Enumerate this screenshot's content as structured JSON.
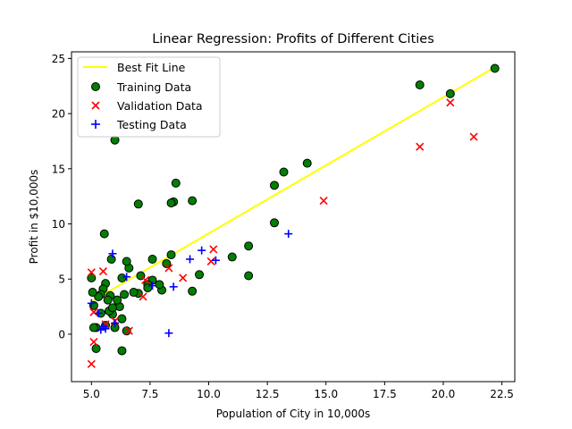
{
  "chart_data": {
    "type": "scatter",
    "title": "Linear Regression: Profits of Different Cities",
    "xlabel": "Population of City in 10,000s",
    "ylabel": "Profit in $10,000s",
    "xlim": [
      4.15,
      23.05
    ],
    "ylim": [
      -4.3,
      25.6
    ],
    "xticks": [
      5.0,
      7.5,
      10.0,
      12.5,
      15.0,
      17.5,
      20.0,
      22.5
    ],
    "xtick_labels": [
      "5.0",
      "7.5",
      "10.0",
      "12.5",
      "15.0",
      "17.5",
      "20.0",
      "22.5"
    ],
    "yticks": [
      0,
      5,
      10,
      15,
      20,
      25
    ],
    "ytick_labels": [
      "0",
      "5",
      "10",
      "15",
      "20",
      "25"
    ],
    "grid": false,
    "legend_position": "top-left",
    "line": {
      "name": "Best Fit Line",
      "color": "#ffff00",
      "x": [
        5.03,
        22.2
      ],
      "y": [
        3.0,
        24.2
      ]
    },
    "series": [
      {
        "name": "Training Data",
        "marker": "circle",
        "color": "#008000",
        "edge_color": "#000000",
        "x": [
          22.2,
          20.3,
          19.0,
          14.2,
          13.2,
          12.8,
          12.8,
          11.7,
          11.7,
          11.0,
          9.6,
          9.3,
          9.3,
          8.6,
          8.5,
          8.4,
          8.4,
          8.2,
          8.0,
          7.9,
          7.6,
          7.6,
          7.4,
          7.1,
          7.0,
          7.0,
          6.8,
          6.6,
          6.5,
          6.4,
          6.3,
          6.2,
          6.1,
          6.0,
          6.0,
          5.9,
          5.85,
          5.8,
          5.75,
          5.7,
          5.6,
          5.55,
          5.5,
          5.4,
          5.3,
          5.2,
          5.2,
          5.1,
          5.1,
          5.05,
          5.0,
          6.3,
          5.6,
          6.3,
          6.5,
          7.4,
          5.4,
          5.9
        ],
        "y": [
          24.1,
          21.8,
          22.6,
          15.5,
          14.7,
          13.5,
          10.1,
          8.0,
          5.3,
          7.0,
          5.4,
          12.1,
          3.9,
          13.7,
          12.0,
          11.9,
          7.2,
          6.4,
          4.0,
          4.5,
          6.8,
          4.9,
          4.5,
          5.3,
          11.8,
          3.7,
          3.8,
          6.0,
          6.6,
          3.6,
          5.1,
          2.5,
          3.1,
          17.6,
          0.6,
          1.8,
          6.8,
          3.5,
          2.1,
          3.1,
          4.6,
          9.1,
          4.1,
          3.6,
          3.4,
          0.6,
          -1.3,
          2.6,
          0.6,
          3.8,
          5.1,
          1.4,
          0.8,
          -1.5,
          0.3,
          4.2,
          1.9,
          2.4
        ]
      },
      {
        "name": "Validation Data",
        "marker": "x",
        "color": "#ff0000",
        "x": [
          20.3,
          21.3,
          19.0,
          14.9,
          10.2,
          10.1,
          8.9,
          8.3,
          7.3,
          7.2,
          5.0,
          5.0,
          5.1,
          5.1,
          5.6,
          6.0,
          6.6,
          5.5
        ],
        "y": [
          21.0,
          17.9,
          17.0,
          12.1,
          7.7,
          6.6,
          5.1,
          6.0,
          4.9,
          3.4,
          5.6,
          -2.7,
          -0.7,
          2.0,
          0.9,
          1.2,
          0.3,
          5.7
        ]
      },
      {
        "name": "Testing Data",
        "marker": "+",
        "color": "#0000ff",
        "x": [
          13.4,
          9.7,
          10.3,
          9.2,
          8.5,
          5.9,
          8.3,
          7.6,
          5.3,
          5.5,
          5.4,
          5.6,
          6.0,
          5.0,
          6.5
        ],
        "y": [
          9.1,
          7.6,
          6.7,
          6.8,
          4.3,
          7.3,
          0.1,
          4.4,
          1.9,
          0.7,
          0.4,
          0.5,
          1.0,
          2.8,
          5.2
        ]
      }
    ]
  }
}
